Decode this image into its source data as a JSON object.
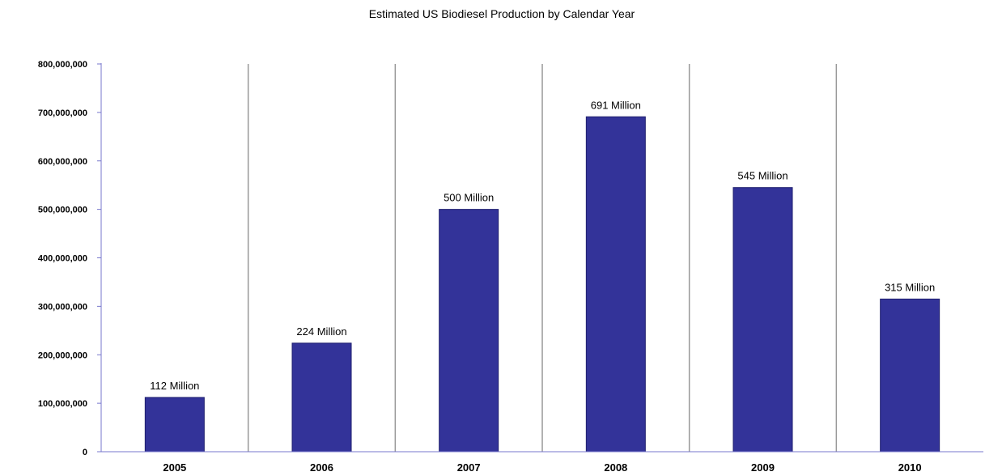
{
  "chart_data": {
    "type": "bar",
    "title": "Estimated US Biodiesel Production  by Calendar Year",
    "categories": [
      "2005",
      "2006",
      "2007",
      "2008",
      "2009",
      "2010"
    ],
    "values": [
      112000000,
      224000000,
      500000000,
      691000000,
      545000000,
      315000000
    ],
    "data_labels": [
      "112 Million",
      "224 Million",
      "500 Million",
      "691 Million",
      "545 Million",
      "315 Million"
    ],
    "y_ticks": [
      "0",
      "100,000,000",
      "200,000,000",
      "300,000,000",
      "400,000,000",
      "500,000,000",
      "600,000,000",
      "700,000,000",
      "800,000,000"
    ],
    "ylim": [
      0,
      800000000
    ],
    "xlabel": "",
    "ylabel": "",
    "grid": "vertical separators between categories",
    "legend": "none",
    "colors": {
      "bar": "#333399",
      "bar_edge": "#1e1e6e",
      "axis": "#7777cc",
      "separator": "#999999"
    }
  }
}
